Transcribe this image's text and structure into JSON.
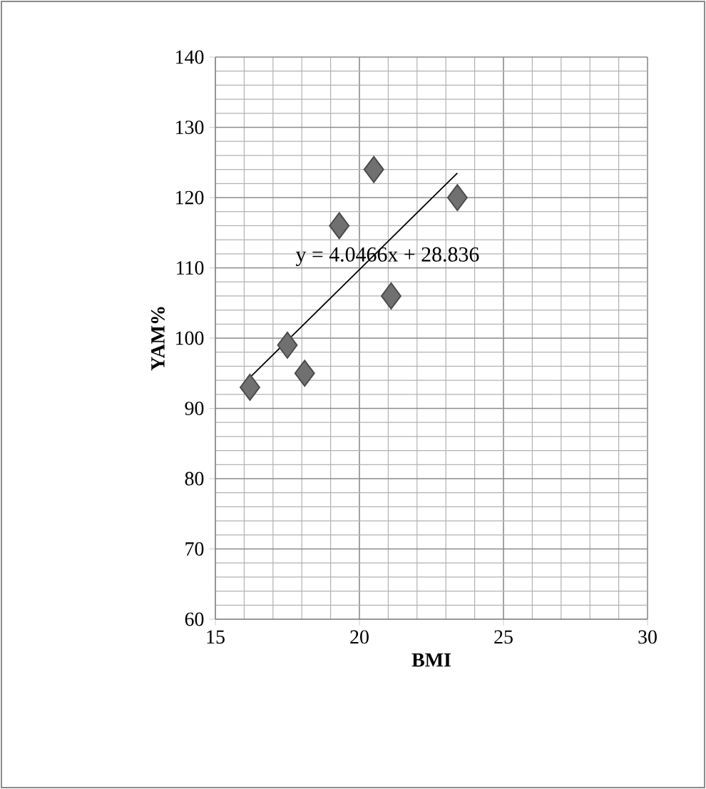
{
  "chart_data": {
    "type": "scatter",
    "xlabel": "BMI",
    "ylabel": "YAM%",
    "xlim": [
      15,
      30
    ],
    "ylim": [
      60,
      140
    ],
    "xticks": [
      15,
      20,
      25,
      30
    ],
    "yticks": [
      60,
      70,
      80,
      90,
      100,
      110,
      120,
      130,
      140
    ],
    "grid": true,
    "series": [
      {
        "marker": "diamond",
        "color": "#707070",
        "x": [
          16.2,
          17.5,
          18.1,
          19.3,
          20.5,
          21.1,
          23.4
        ],
        "values": [
          93,
          99,
          95,
          116,
          124,
          106,
          120
        ]
      },
      {
        "type": "line",
        "marker": "none",
        "color": "#000000",
        "x": [
          16.2,
          23.4
        ],
        "values": [
          94.4,
          123.5
        ]
      }
    ],
    "annotations": [
      "y = 4.0466x + 28.836"
    ]
  }
}
